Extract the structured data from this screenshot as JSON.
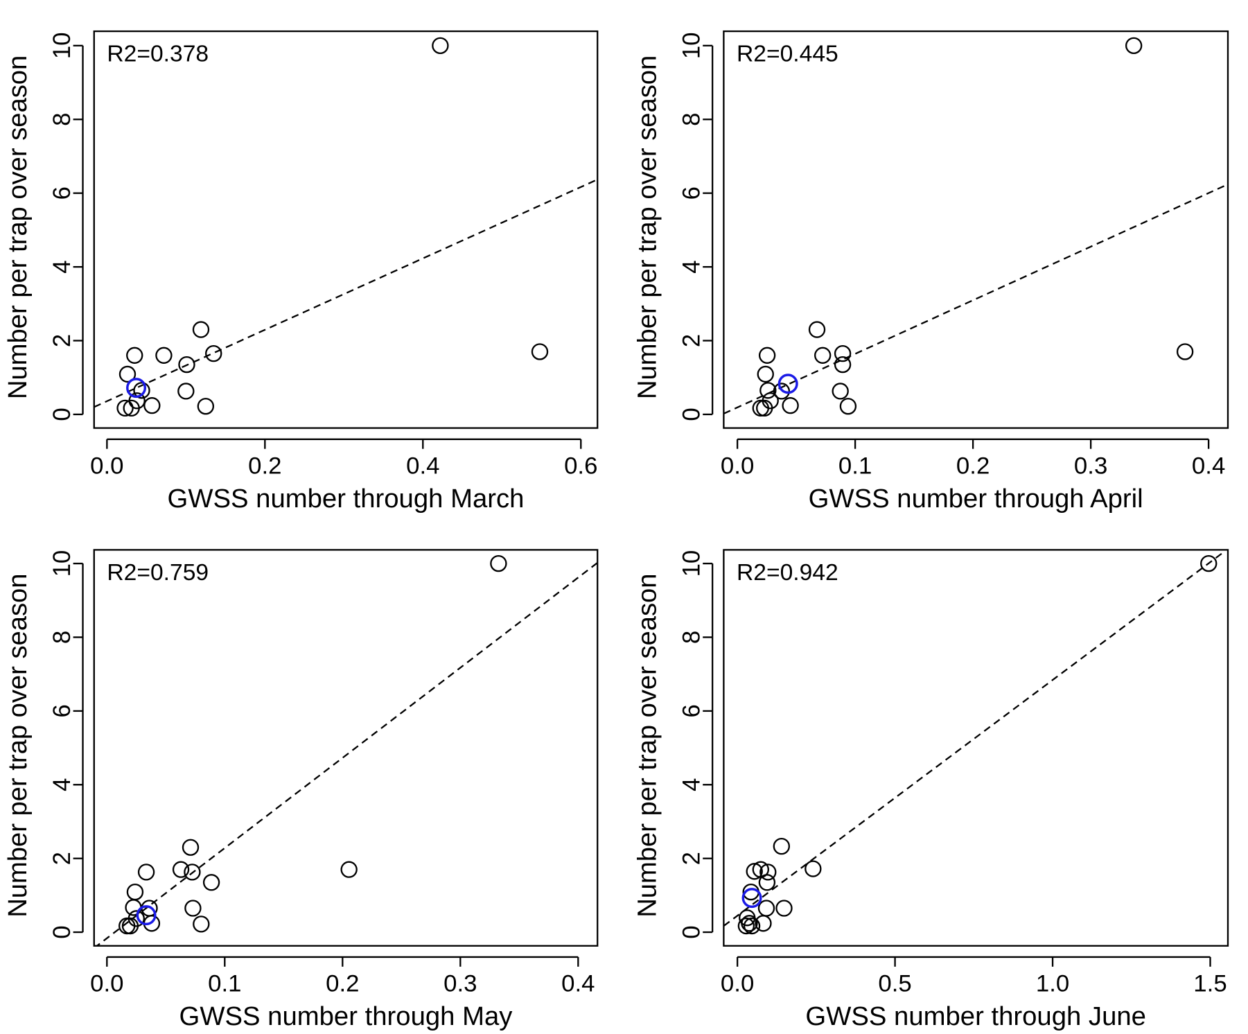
{
  "chart_data": [
    {
      "type": "scatter",
      "annotation": "R2=0.378",
      "xlabel": "GWSS number through March",
      "ylabel": "Number per trap over season",
      "x": [
        0.422,
        0.548,
        0.119,
        0.135,
        0.035,
        0.072,
        0.101,
        0.026,
        0.044,
        0.1,
        0.038,
        0.057,
        0.125,
        0.023,
        0.031
      ],
      "y": [
        10,
        1.7,
        2.3,
        1.65,
        1.6,
        1.6,
        1.35,
        1.09,
        0.65,
        0.63,
        0.37,
        0.24,
        0.22,
        0.17,
        0.17
      ],
      "color": "#000000",
      "highlight": {
        "x": 0.037,
        "y": 0.72,
        "color": "#1a1ae6"
      },
      "fit_line": {
        "x": [
          -0.0163,
          0.621
        ],
        "y": [
          0.2,
          6.37
        ]
      },
      "xlim": [
        -0.0163,
        0.621
      ],
      "ylim": [
        -0.37,
        10.39
      ],
      "xticks": [
        {
          "value": 0,
          "label": "0.0"
        },
        0.2,
        0.4,
        0.6
      ],
      "yticks": [
        0,
        2,
        4,
        6,
        8,
        10
      ]
    },
    {
      "type": "scatter",
      "annotation": "R2=0.445",
      "xlabel": "GWSS number through April",
      "ylabel": "Number per trap over season",
      "x": [
        0.3365,
        0.38,
        0.0676,
        0.0724,
        0.0894,
        0.0894,
        0.0253,
        0.0239,
        0.026,
        0.0874,
        0.0375,
        0.028,
        0.045,
        0.094,
        0.0198,
        0.023
      ],
      "y": [
        10,
        1.7,
        2.3,
        1.6,
        1.65,
        1.35,
        1.6,
        1.09,
        0.65,
        0.63,
        0.63,
        0.37,
        0.24,
        0.22,
        0.17,
        0.17
      ],
      "color": "#000000",
      "highlight": {
        "x": 0.043,
        "y": 0.83,
        "color": "#1a1ae6"
      },
      "fit_line": {
        "x": [
          -0.0116,
          0.4164
        ],
        "y": [
          0.02,
          6.24
        ]
      },
      "xlim": [
        -0.0116,
        0.4164
      ],
      "ylim": [
        -0.37,
        10.39
      ],
      "xticks": [
        {
          "value": 0,
          "label": "0.0"
        },
        0.1,
        0.2,
        0.3,
        0.4
      ],
      "yticks": [
        0,
        2,
        4,
        6,
        8,
        10
      ]
    },
    {
      "type": "scatter",
      "annotation": "R2=0.759",
      "xlabel": "GWSS number through May",
      "ylabel": "Number per trap over season",
      "x": [
        0.3324,
        0.2055,
        0.071,
        0.0628,
        0.0724,
        0.0334,
        0.0887,
        0.0239,
        0.0225,
        0.073,
        0.036,
        0.025,
        0.038,
        0.08,
        0.017,
        0.0198
      ],
      "y": [
        10,
        1.7,
        2.3,
        1.7,
        1.63,
        1.63,
        1.35,
        1.09,
        0.67,
        0.65,
        0.65,
        0.37,
        0.24,
        0.22,
        0.17,
        0.17
      ],
      "color": "#000000",
      "highlight": {
        "x": 0.0334,
        "y": 0.46,
        "color": "#1a1ae6"
      },
      "fit_line": {
        "x": [
          -0.0109,
          0.4164
        ],
        "y": [
          -0.43,
          10.02
        ]
      },
      "xlim": [
        -0.0109,
        0.4164
      ],
      "ylim": [
        -0.37,
        10.37
      ],
      "xticks": [
        {
          "value": 0,
          "label": "0.0"
        },
        0.1,
        0.2,
        0.3,
        0.4
      ],
      "yticks": [
        0,
        2,
        4,
        6,
        8,
        10
      ]
    },
    {
      "type": "scatter",
      "annotation": "R2=0.942",
      "xlabel": "GWSS number through June",
      "ylabel": "Number per trap over season",
      "x": [
        1.495,
        0.24,
        0.14,
        0.054,
        0.074,
        0.097,
        0.094,
        0.043,
        0.092,
        0.148,
        0.031,
        0.082,
        0.038,
        0.028,
        0.046
      ],
      "y": [
        10,
        1.72,
        2.33,
        1.65,
        1.7,
        1.63,
        1.35,
        1.09,
        0.65,
        0.65,
        0.39,
        0.24,
        0.24,
        0.17,
        0.17
      ],
      "color": "#000000",
      "highlight": {
        "x": 0.046,
        "y": 0.93,
        "color": "#1a1ae6"
      },
      "fit_line": {
        "x": [
          -0.0434,
          1.538
        ],
        "y": [
          0.17,
          10.28
        ]
      },
      "xlim": [
        -0.0434,
        1.556
      ],
      "ylim": [
        -0.37,
        10.37
      ],
      "xticks": [
        {
          "value": 0,
          "label": "0.0"
        },
        0.5,
        {
          "value": 1,
          "label": "1.0"
        },
        1.5
      ],
      "yticks": [
        0,
        2,
        4,
        6,
        8,
        10
      ]
    }
  ]
}
